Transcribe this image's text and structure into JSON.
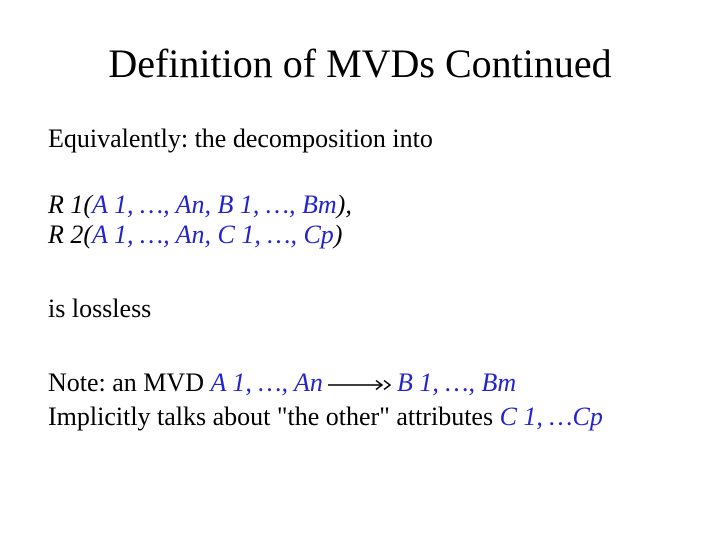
{
  "title": "Definition of MVDs Continued",
  "intro": "Equivalently:  the decomposition into",
  "decomposition": {
    "r1_prefix": "R 1(",
    "r1_args": "A 1, …, An, B 1, …, Bm",
    "r1_suffix": "),",
    "r2_prefix": "R 2(",
    "r2_args": "A 1, …, An, C 1, …, Cp",
    "r2_suffix": ")"
  },
  "lossless": "is lossless",
  "note": {
    "prefix": "Note: an MVD  ",
    "lhs": "A 1, …, An",
    "rhs": "B 1, …, Bm",
    "line2a": "Implicitly talks about \"the other\" attributes ",
    "line2b": "C 1, …Cp"
  },
  "colors": {
    "text": "#000000",
    "accent": "#2323d0",
    "bg": "#ffffff"
  },
  "arrow": {
    "width": 64,
    "height": 14,
    "stroke": "#000000",
    "stroke_width": 1.5,
    "head_size": 6,
    "double_head": true
  },
  "typography": {
    "title_fontsize": 40,
    "body_fontsize": 26,
    "family": "Times New Roman"
  }
}
